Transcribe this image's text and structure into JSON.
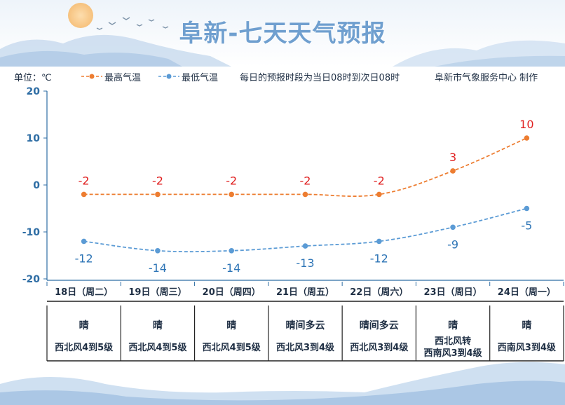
{
  "header": {
    "title": "阜新-七天天气预报",
    "unit_label": "单位：℃",
    "legend_high": "最高气温",
    "legend_low": "最低气温",
    "note": "每日的预报时段为当日08时到次日08时",
    "credit": "阜新市气象服务中心 制作"
  },
  "colors": {
    "high": "#ed7d31",
    "low": "#5b9bd5",
    "high_label": "#e02020",
    "low_label": "#2e75b6",
    "axis": "#2e6da4",
    "title": "#6f9fcf"
  },
  "chart_data": {
    "type": "line",
    "categories": [
      "18日（周二）",
      "19日（周三）",
      "20日（周四）",
      "21日（周五）",
      "22日（周六）",
      "23日（周日）",
      "24日（周一）"
    ],
    "series": [
      {
        "name": "最高气温",
        "values": [
          -2,
          -2,
          -2,
          -2,
          -2,
          3,
          10
        ]
      },
      {
        "name": "最低气温",
        "values": [
          -12,
          -14,
          -14,
          -13,
          -12,
          -9,
          -5
        ]
      }
    ],
    "ylim": [
      -20,
      20
    ],
    "yticks": [
      "20",
      "10",
      "0",
      "-10",
      "-20"
    ],
    "ylabel": "单位：℃",
    "legend": "top-left",
    "grid": false
  },
  "forecast": [
    {
      "weather": "晴",
      "wind": [
        "西北风4到5级"
      ]
    },
    {
      "weather": "晴",
      "wind": [
        "西北风4到5级"
      ]
    },
    {
      "weather": "晴",
      "wind": [
        "西北风4到5级"
      ]
    },
    {
      "weather": "晴间多云",
      "wind": [
        "西北风3到4级"
      ]
    },
    {
      "weather": "晴间多云",
      "wind": [
        "西北风3到4级"
      ]
    },
    {
      "weather": "晴",
      "wind": [
        "西北风转",
        "西南风3到4级"
      ]
    },
    {
      "weather": "晴",
      "wind": [
        "西南风3到4级"
      ]
    }
  ]
}
